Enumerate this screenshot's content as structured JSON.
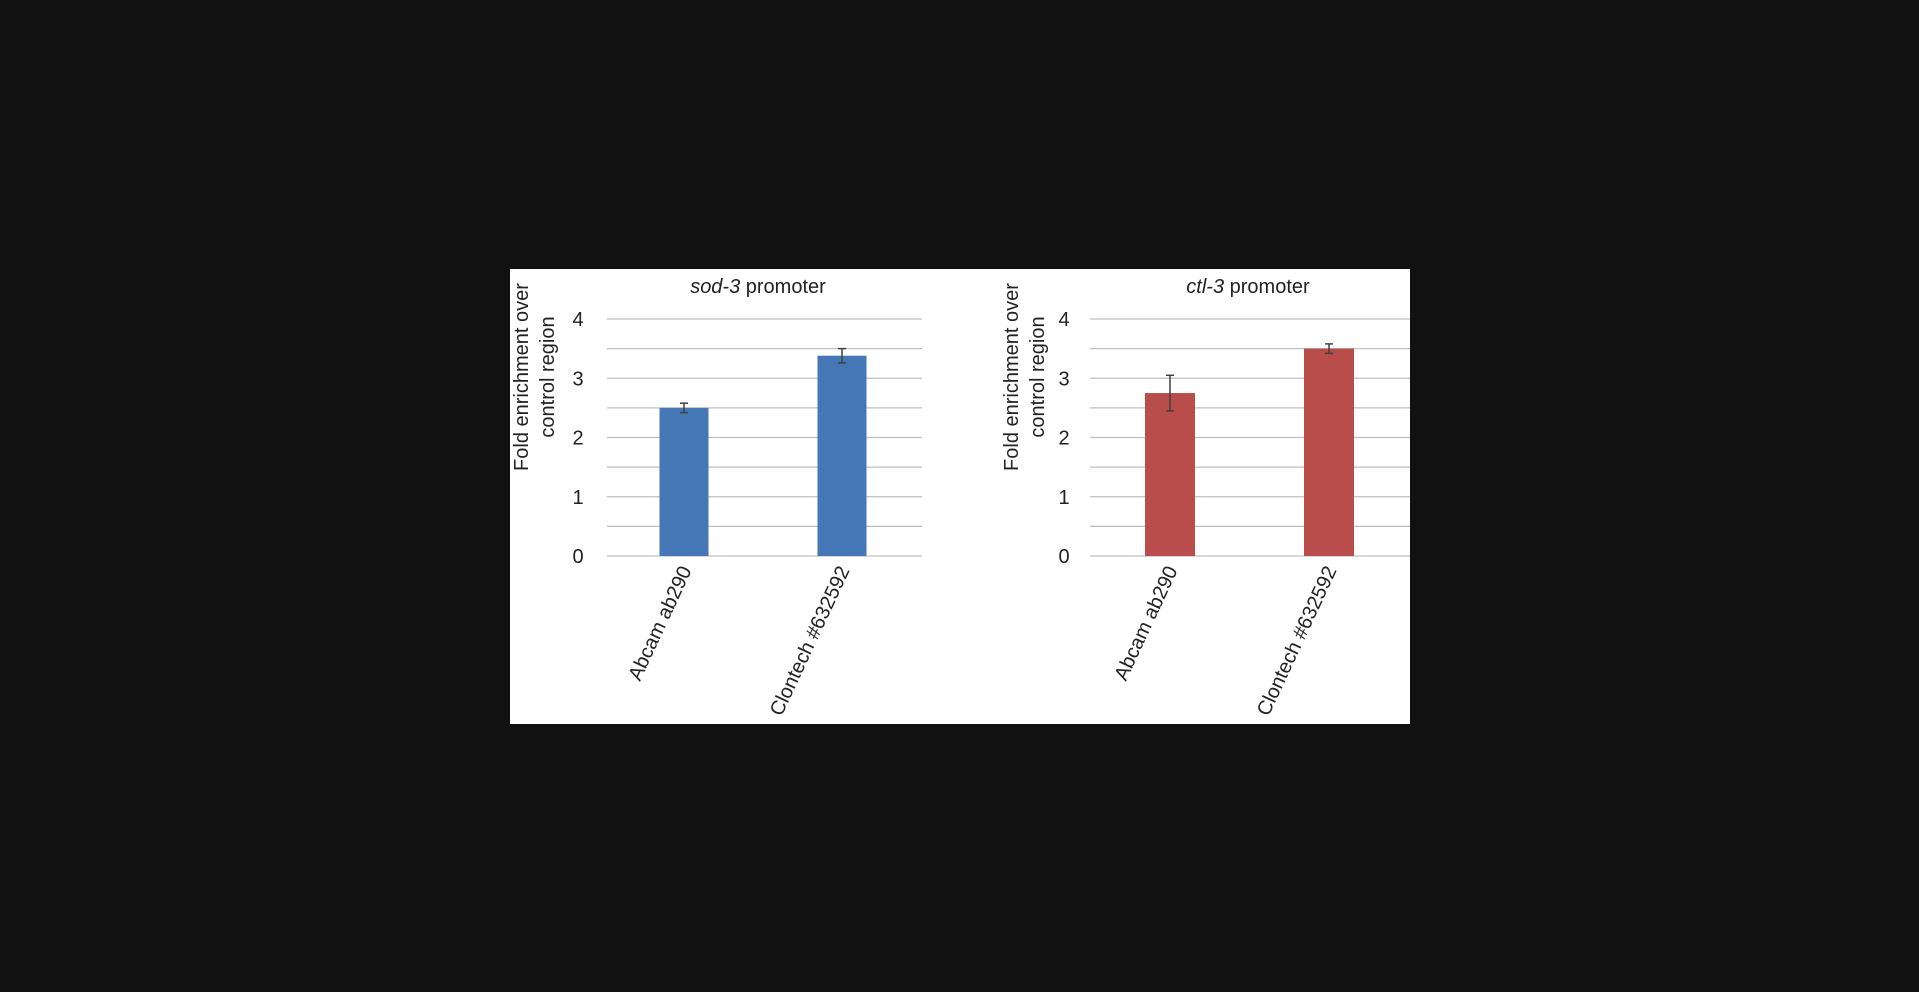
{
  "chart_data": [
    {
      "type": "bar",
      "title_italic": "sod-3",
      "title_rest": " promoter",
      "ylabel_line1": "Fold enrichment over",
      "ylabel_line2": "control region",
      "categories": [
        "Abcam ab290",
        "Clontech #632592"
      ],
      "values": [
        2.5,
        3.38
      ],
      "errors": [
        0.08,
        0.12
      ],
      "ylim": [
        0,
        4
      ],
      "yticks": [
        0,
        1,
        2,
        3,
        4
      ],
      "minor_gridlines": [
        0.5,
        1.5,
        2.5,
        3.5
      ],
      "grid": true,
      "bar_color": "#4577B6"
    },
    {
      "type": "bar",
      "title_italic": "ctl-3",
      "title_rest": " promoter",
      "ylabel_line1": "Fold enrichment over",
      "ylabel_line2": "control region",
      "categories": [
        "Abcam ab290",
        "Clontech #632592"
      ],
      "values": [
        2.75,
        3.5
      ],
      "errors": [
        0.3,
        0.08
      ],
      "ylim": [
        0,
        4
      ],
      "yticks": [
        0,
        1,
        2,
        3,
        4
      ],
      "minor_gridlines": [
        0.5,
        1.5,
        2.5,
        3.5
      ],
      "grid": true,
      "bar_color": "#B84D4C"
    }
  ]
}
